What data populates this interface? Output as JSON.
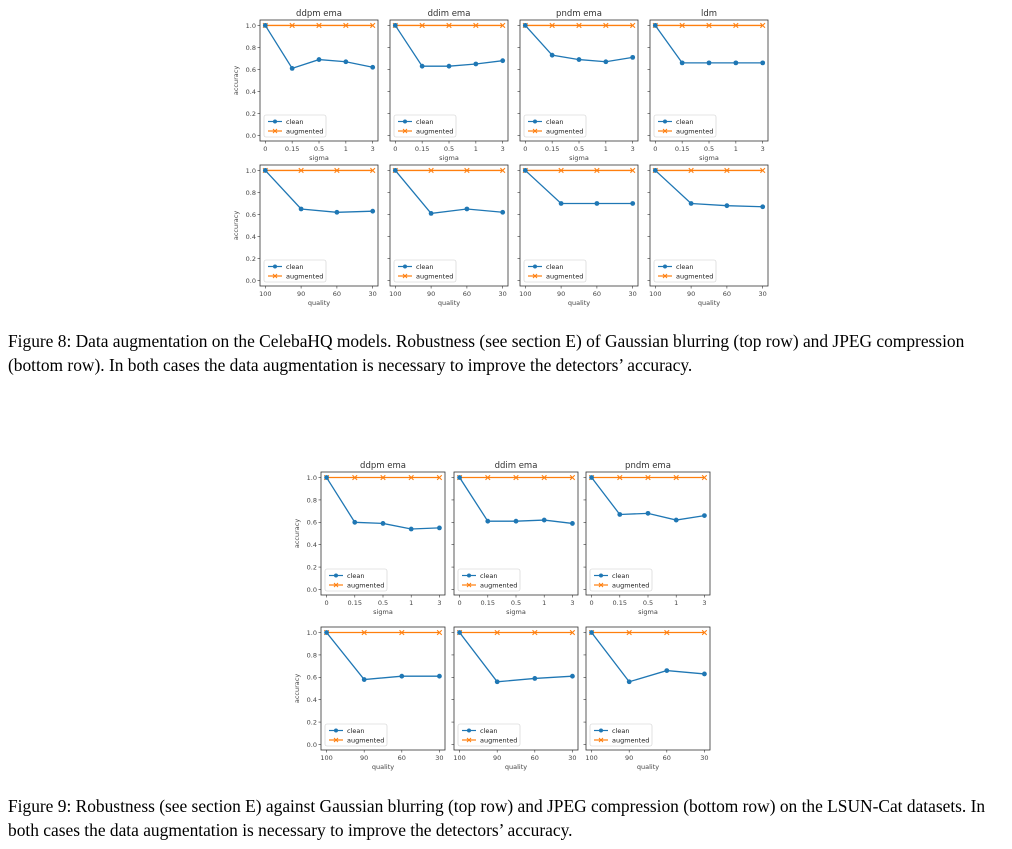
{
  "figures": [
    {
      "id": "fig8",
      "caption": "Figure 8: Data augmentation on the CelebaHQ models. Robustness (see section E) of Gaussian blurring (top row) and JPEG compression (bottom row). In both cases the data augmentation is necessary to improve the detectors’ accuracy.",
      "ylabel": "accuracy",
      "y_ticks": [
        "0.0",
        "0.2",
        "0.4",
        "0.6",
        "0.8",
        "1.0"
      ],
      "rows": [
        {
          "xlabel": "sigma",
          "x_ticks": [
            "0",
            "0.15",
            "0.5",
            "1",
            "3"
          ]
        },
        {
          "xlabel": "quality",
          "x_ticks": [
            "100",
            "90",
            "60",
            "30"
          ]
        }
      ]
    },
    {
      "id": "fig9",
      "caption": "Figure 9: Robustness (see section E) against Gaussian blurring (top row) and JPEG compression (bottom row) on the LSUN-Cat datasets. In both cases the data augmentation is necessary to improve the detectors’ accuracy.",
      "ylabel": "accuracy",
      "y_ticks": [
        "0.0",
        "0.2",
        "0.4",
        "0.6",
        "0.8",
        "1.0"
      ],
      "rows": [
        {
          "xlabel": "sigma",
          "x_ticks": [
            "0",
            "0.15",
            "0.5",
            "1",
            "3"
          ]
        },
        {
          "xlabel": "quality",
          "x_ticks": [
            "100",
            "90",
            "60",
            "30"
          ]
        }
      ]
    }
  ],
  "legend": {
    "clean": "clean",
    "augmented": "augmented"
  },
  "colors": {
    "clean": "#1f77b4",
    "augmented": "#ff7f0e",
    "axis": "#333333",
    "text": "#444444"
  },
  "chart_data": [
    {
      "type": "line",
      "figure": "fig8",
      "row": 1,
      "title": "ddpm ema",
      "xlabel": "",
      "ylabel": "accuracy",
      "ylim": [
        0,
        1
      ],
      "x": [
        "0",
        "0.15",
        "0.5",
        "1",
        "3"
      ],
      "series": [
        {
          "name": "clean",
          "values": [
            1.0,
            0.61,
            0.69,
            0.67,
            0.62
          ]
        },
        {
          "name": "augmented",
          "values": [
            1.0,
            1.0,
            1.0,
            1.0,
            1.0
          ]
        }
      ]
    },
    {
      "type": "line",
      "figure": "fig8",
      "row": 1,
      "title": "ddim ema",
      "xlabel": "",
      "ylabel": "",
      "ylim": [
        0,
        1
      ],
      "x": [
        "0",
        "0.15",
        "0.5",
        "1",
        "3"
      ],
      "series": [
        {
          "name": "clean",
          "values": [
            1.0,
            0.63,
            0.63,
            0.65,
            0.68
          ]
        },
        {
          "name": "augmented",
          "values": [
            1.0,
            1.0,
            1.0,
            1.0,
            1.0
          ]
        }
      ]
    },
    {
      "type": "line",
      "figure": "fig8",
      "row": 1,
      "title": "pndm ema",
      "xlabel": "",
      "ylabel": "",
      "ylim": [
        0,
        1
      ],
      "x": [
        "0",
        "0.15",
        "0.5",
        "1",
        "3"
      ],
      "series": [
        {
          "name": "clean",
          "values": [
            1.0,
            0.73,
            0.69,
            0.67,
            0.71
          ]
        },
        {
          "name": "augmented",
          "values": [
            1.0,
            1.0,
            1.0,
            1.0,
            1.0
          ]
        }
      ]
    },
    {
      "type": "line",
      "figure": "fig8",
      "row": 1,
      "title": "ldm",
      "xlabel": "",
      "ylabel": "",
      "ylim": [
        0,
        1
      ],
      "x": [
        "0",
        "0.15",
        "0.5",
        "1",
        "3"
      ],
      "series": [
        {
          "name": "clean",
          "values": [
            1.0,
            0.66,
            0.66,
            0.66,
            0.66
          ]
        },
        {
          "name": "augmented",
          "values": [
            1.0,
            1.0,
            1.0,
            1.0,
            1.0
          ]
        }
      ]
    },
    {
      "type": "line",
      "figure": "fig8",
      "row": 2,
      "title": "",
      "xlabel": "",
      "ylabel": "accuracy",
      "ylim": [
        0,
        1
      ],
      "x": [
        "100",
        "90",
        "60",
        "30"
      ],
      "series": [
        {
          "name": "clean",
          "values": [
            1.0,
            0.65,
            0.62,
            0.63
          ]
        },
        {
          "name": "augmented",
          "values": [
            1.0,
            1.0,
            1.0,
            1.0
          ]
        }
      ]
    },
    {
      "type": "line",
      "figure": "fig8",
      "row": 2,
      "title": "",
      "xlabel": "",
      "ylabel": "",
      "ylim": [
        0,
        1
      ],
      "x": [
        "100",
        "90",
        "60",
        "30"
      ],
      "series": [
        {
          "name": "clean",
          "values": [
            1.0,
            0.61,
            0.65,
            0.62
          ]
        },
        {
          "name": "augmented",
          "values": [
            1.0,
            1.0,
            1.0,
            1.0
          ]
        }
      ]
    },
    {
      "type": "line",
      "figure": "fig8",
      "row": 2,
      "title": "",
      "xlabel": "",
      "ylabel": "",
      "ylim": [
        0,
        1
      ],
      "x": [
        "100",
        "90",
        "60",
        "30"
      ],
      "series": [
        {
          "name": "clean",
          "values": [
            1.0,
            0.7,
            0.7,
            0.7
          ]
        },
        {
          "name": "augmented",
          "values": [
            1.0,
            1.0,
            1.0,
            1.0
          ]
        }
      ]
    },
    {
      "type": "line",
      "figure": "fig8",
      "row": 2,
      "title": "",
      "xlabel": "",
      "ylabel": "",
      "ylim": [
        0,
        1
      ],
      "x": [
        "100",
        "90",
        "60",
        "30"
      ],
      "series": [
        {
          "name": "clean",
          "values": [
            1.0,
            0.7,
            0.68,
            0.67
          ]
        },
        {
          "name": "augmented",
          "values": [
            1.0,
            1.0,
            1.0,
            1.0
          ]
        }
      ]
    },
    {
      "type": "line",
      "figure": "fig9",
      "row": 1,
      "title": "ddpm ema",
      "xlabel": "",
      "ylabel": "accuracy",
      "ylim": [
        0,
        1
      ],
      "x": [
        "0",
        "0.15",
        "0.5",
        "1",
        "3"
      ],
      "series": [
        {
          "name": "clean",
          "values": [
            1.0,
            0.6,
            0.59,
            0.54,
            0.55
          ]
        },
        {
          "name": "augmented",
          "values": [
            1.0,
            1.0,
            1.0,
            1.0,
            1.0
          ]
        }
      ]
    },
    {
      "type": "line",
      "figure": "fig9",
      "row": 1,
      "title": "ddim ema",
      "xlabel": "",
      "ylabel": "",
      "ylim": [
        0,
        1
      ],
      "x": [
        "0",
        "0.15",
        "0.5",
        "1",
        "3"
      ],
      "series": [
        {
          "name": "clean",
          "values": [
            1.0,
            0.61,
            0.61,
            0.62,
            0.59
          ]
        },
        {
          "name": "augmented",
          "values": [
            1.0,
            1.0,
            1.0,
            1.0,
            1.0
          ]
        }
      ]
    },
    {
      "type": "line",
      "figure": "fig9",
      "row": 1,
      "title": "pndm ema",
      "xlabel": "",
      "ylabel": "",
      "ylim": [
        0,
        1
      ],
      "x": [
        "0",
        "0.15",
        "0.5",
        "1",
        "3"
      ],
      "series": [
        {
          "name": "clean",
          "values": [
            1.0,
            0.67,
            0.68,
            0.62,
            0.66
          ]
        },
        {
          "name": "augmented",
          "values": [
            1.0,
            1.0,
            1.0,
            1.0,
            1.0
          ]
        }
      ]
    },
    {
      "type": "line",
      "figure": "fig9",
      "row": 2,
      "title": "",
      "xlabel": "",
      "ylabel": "accuracy",
      "ylim": [
        0,
        1
      ],
      "x": [
        "100",
        "90",
        "60",
        "30"
      ],
      "series": [
        {
          "name": "clean",
          "values": [
            1.0,
            0.58,
            0.61,
            0.61
          ]
        },
        {
          "name": "augmented",
          "values": [
            1.0,
            1.0,
            1.0,
            1.0
          ]
        }
      ]
    },
    {
      "type": "line",
      "figure": "fig9",
      "row": 2,
      "title": "",
      "xlabel": "",
      "ylabel": "",
      "ylim": [
        0,
        1
      ],
      "x": [
        "100",
        "90",
        "60",
        "30"
      ],
      "series": [
        {
          "name": "clean",
          "values": [
            1.0,
            0.56,
            0.59,
            0.61
          ]
        },
        {
          "name": "augmented",
          "values": [
            1.0,
            1.0,
            1.0,
            1.0
          ]
        }
      ]
    },
    {
      "type": "line",
      "figure": "fig9",
      "row": 2,
      "title": "",
      "xlabel": "",
      "ylabel": "",
      "ylim": [
        0,
        1
      ],
      "x": [
        "100",
        "90",
        "60",
        "30"
      ],
      "series": [
        {
          "name": "clean",
          "values": [
            1.0,
            0.56,
            0.66,
            0.63
          ]
        },
        {
          "name": "augmented",
          "values": [
            1.0,
            1.0,
            1.0,
            1.0
          ]
        }
      ]
    }
  ]
}
